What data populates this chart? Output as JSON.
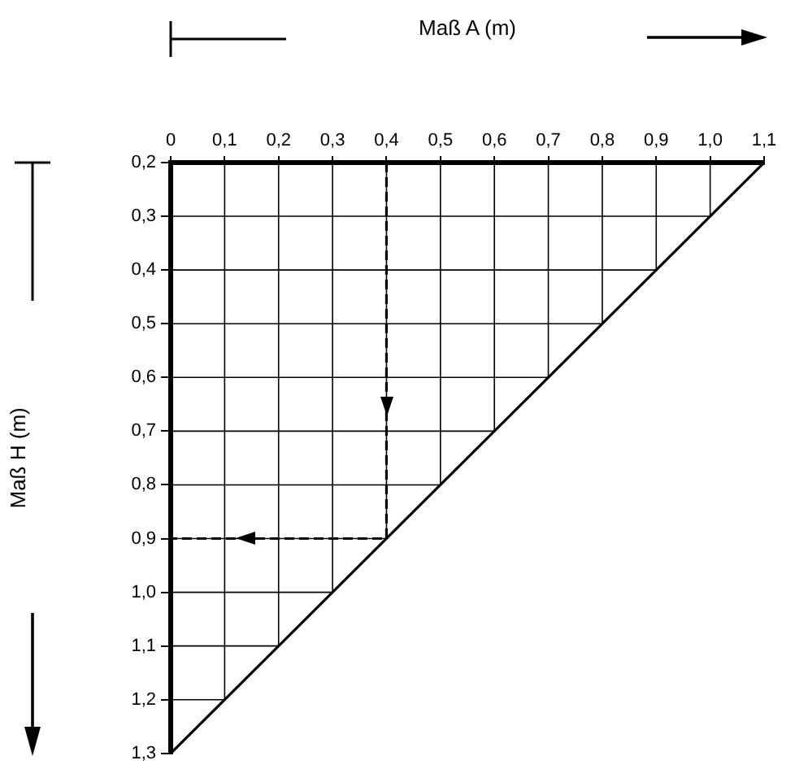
{
  "chart_data": {
    "type": "line",
    "xlabel": "Maß A (m)",
    "ylabel": "Maß H (m)",
    "xlim": [
      0,
      1.1
    ],
    "ylim": [
      1.3,
      0.2
    ],
    "xticks": [
      0,
      {
        "value": 0.1,
        "label": "0,1"
      },
      {
        "value": 0.2,
        "label": "0,2"
      },
      {
        "value": 0.3,
        "label": "0,3"
      },
      {
        "value": 0.4,
        "label": "0,4"
      },
      {
        "value": 0.5,
        "label": "0,5"
      },
      {
        "value": 0.6,
        "label": "0,6"
      },
      {
        "value": 0.7,
        "label": "0,7"
      },
      {
        "value": 0.8,
        "label": "0,8"
      },
      {
        "value": 0.9,
        "label": "0,9"
      },
      {
        "value": 1.0,
        "label": "1,0"
      },
      {
        "value": 1.1,
        "label": "1,1"
      }
    ],
    "yticks": [
      {
        "value": 0.2,
        "label": "0,2"
      },
      {
        "value": 0.3,
        "label": "0,3"
      },
      {
        "value": 0.4,
        "label": "0,4"
      },
      {
        "value": 0.5,
        "label": "0,5"
      },
      {
        "value": 0.6,
        "label": "0,6"
      },
      {
        "value": 0.7,
        "label": "0,7"
      },
      {
        "value": 0.8,
        "label": "0,8"
      },
      {
        "value": 0.9,
        "label": "0,9"
      },
      {
        "value": 1.0,
        "label": "1,0"
      },
      {
        "value": 1.1,
        "label": "1,1"
      },
      {
        "value": 1.2,
        "label": "1,2"
      },
      {
        "value": 1.3,
        "label": "1,3"
      }
    ],
    "series": [
      {
        "color": "#000000",
        "x": [
          1.1,
          0
        ],
        "values": [
          0.2,
          1.3
        ],
        "line_style": "solid"
      },
      {
        "color": "#000000",
        "x": [
          0.4,
          0.4,
          0
        ],
        "values": [
          0.2,
          0.9,
          0.9
        ],
        "line_style": "dashed"
      }
    ],
    "grid": true,
    "legend": false,
    "marker": "none"
  }
}
